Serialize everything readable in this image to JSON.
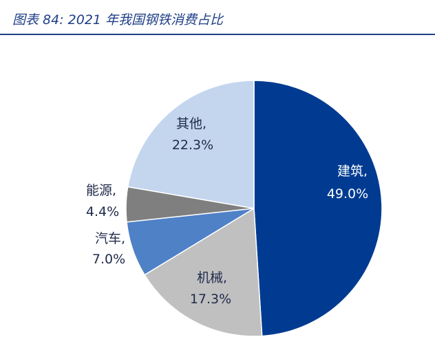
{
  "header": {
    "title": "图表 84:  2021 年我国钢铁消费占比"
  },
  "chart_data": {
    "type": "pie",
    "title": "",
    "slices": [
      {
        "name": "建筑",
        "value": 49.0,
        "value_label": "49.0%",
        "color": "#003b91",
        "label_color": "#ffffff"
      },
      {
        "name": "机械",
        "value": 17.3,
        "value_label": "17.3%",
        "color": "#c0c0c0",
        "label_color": "#1f2a4a"
      },
      {
        "name": "汽车",
        "value": 7.0,
        "value_label": "7.0%",
        "color": "#4f81c7",
        "label_color": "#1f2a4a"
      },
      {
        "name": "能源",
        "value": 4.4,
        "value_label": "4.4%",
        "color": "#7f7f7f",
        "label_color": "#1f2a4a"
      },
      {
        "name": "其他",
        "value": 22.3,
        "value_label": "22.3%",
        "color": "#c4d6ee",
        "label_color": "#1f2a4a"
      }
    ],
    "start_angle_deg": 0,
    "direction": "clockwise",
    "legend": "none",
    "label_format": "name, value%"
  }
}
